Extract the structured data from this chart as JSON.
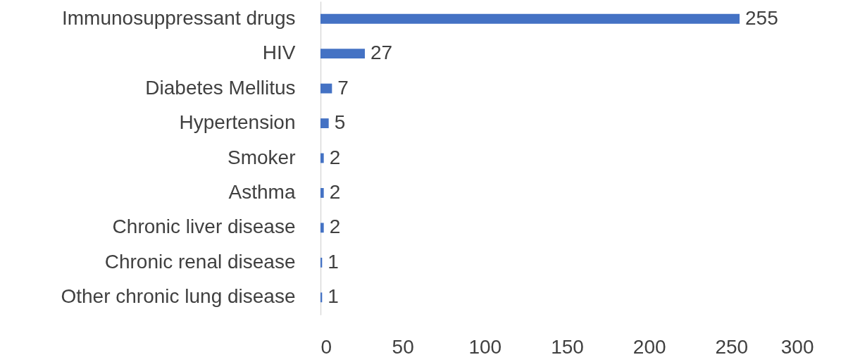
{
  "chart_data": {
    "type": "bar",
    "orientation": "horizontal",
    "categories": [
      "Immunosuppressant drugs",
      "HIV",
      "Diabetes Mellitus",
      "Hypertension",
      "Smoker",
      "Asthma",
      "Chronic liver disease",
      "Chronic renal disease",
      "Other chronic lung disease"
    ],
    "values": [
      255,
      27,
      7,
      5,
      2,
      2,
      2,
      1,
      1
    ],
    "color": "#4472c4",
    "xlim": [
      0,
      300
    ],
    "xticks": [
      0,
      50,
      100,
      150,
      200,
      250,
      300
    ],
    "grid": false,
    "data_labels": true
  }
}
